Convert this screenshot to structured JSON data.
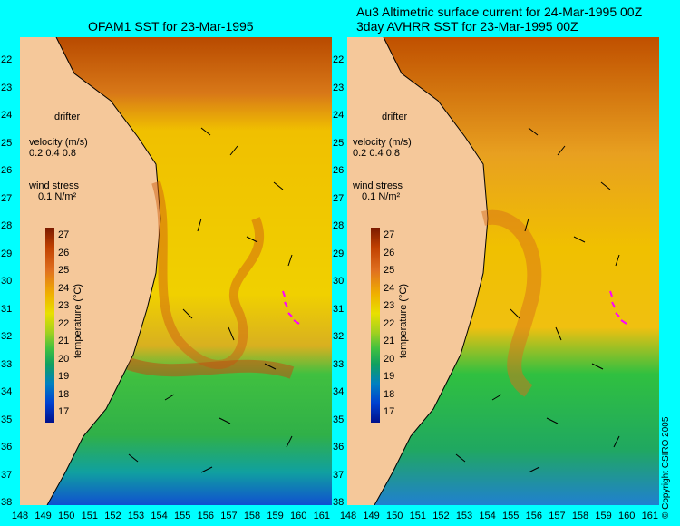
{
  "titles": {
    "left": "OFAM1 SST for 23-Mar-1995",
    "right_line1": "Au3 Altimetric surface current for 24-Mar-1995 00Z",
    "right_line2": "3day AVHRR SST for 23-Mar-1995 00Z"
  },
  "latitudes": [
    "22",
    "23",
    "24",
    "25",
    "26",
    "27",
    "28",
    "29",
    "30",
    "31",
    "32",
    "33",
    "34",
    "35",
    "36",
    "37",
    "38"
  ],
  "longitudes": [
    "148",
    "149",
    "150",
    "151",
    "152",
    "153",
    "154",
    "155",
    "156",
    "157",
    "158",
    "159",
    "160",
    "161"
  ],
  "legend": {
    "drifter": "drifter",
    "velocity_title": "velocity (m/s)",
    "velocity_scale": "0.2 0.4 0.8",
    "wind_title": "wind stress",
    "wind_scale": "0.1 N/m²"
  },
  "colorbar": {
    "ticks": [
      "27",
      "26",
      "25",
      "24",
      "23",
      "22",
      "21",
      "20",
      "19",
      "18",
      "17"
    ],
    "label": "temperature (°C)"
  },
  "copyright": "© Copyright CSIRO 2005",
  "colors": {
    "land": "#f5c89a",
    "frame": "#00ffff",
    "warm": "#c85a10",
    "mid": "#e8c000",
    "cool": "#20b040",
    "cold": "#1048c0",
    "drifter": "#ff00ff"
  }
}
